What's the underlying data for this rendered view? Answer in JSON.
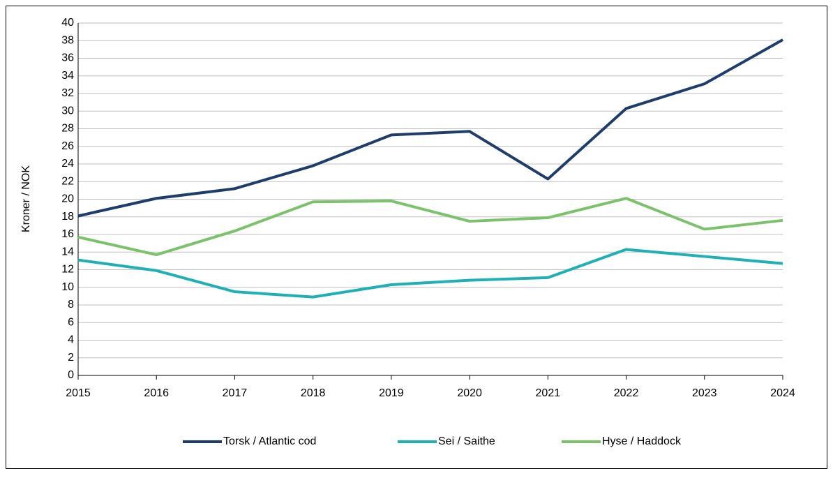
{
  "chart_data": {
    "type": "line",
    "y_label": "Kroner / NOK",
    "x": [
      2015,
      2016,
      2017,
      2018,
      2019,
      2020,
      2021,
      2022,
      2023,
      2024
    ],
    "xlim": [
      2015,
      2024
    ],
    "xticks": [
      2015,
      2016,
      2017,
      2018,
      2019,
      2020,
      2021,
      2022,
      2023,
      2024
    ],
    "ylim": [
      0,
      40
    ],
    "yticks": [
      0,
      2,
      4,
      6,
      8,
      10,
      12,
      14,
      16,
      18,
      20,
      22,
      24,
      26,
      28,
      30,
      32,
      34,
      36,
      38,
      40
    ],
    "grid": true,
    "legend": "bottom",
    "series": [
      {
        "name": "Torsk / Atlantic cod",
        "color": "#1f3d6b",
        "values": [
          18.1,
          20.1,
          21.2,
          23.8,
          27.3,
          27.7,
          22.3,
          30.3,
          33.1,
          38.1
        ]
      },
      {
        "name": "Sei / Saithe",
        "color": "#1fb0b5",
        "values": [
          13.1,
          11.9,
          9.5,
          8.9,
          10.3,
          10.8,
          11.1,
          14.3,
          13.5,
          12.7
        ]
      },
      {
        "name": "Hyse / Haddock",
        "color": "#7ac36a",
        "values": [
          15.7,
          13.7,
          16.4,
          19.7,
          19.8,
          17.5,
          17.9,
          20.1,
          16.6,
          17.6
        ]
      }
    ]
  }
}
